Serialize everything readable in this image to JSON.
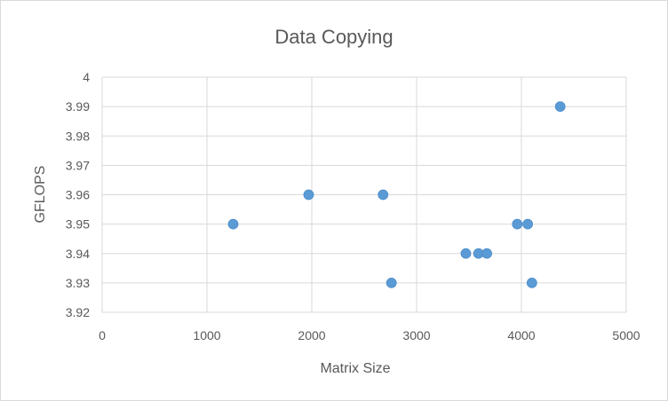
{
  "chart_data": {
    "type": "scatter",
    "title": "Data Copying",
    "xlabel": "Matrix Size",
    "ylabel": "GFLOPS",
    "xlim": [
      0,
      5000
    ],
    "ylim": [
      3.92,
      4.0
    ],
    "x_ticks": [
      "0",
      "1000",
      "2000",
      "3000",
      "4000",
      "5000"
    ],
    "y_ticks": [
      "3.92",
      "3.93",
      "3.94",
      "3.95",
      "3.96",
      "3.97",
      "3.98",
      "3.99",
      "4"
    ],
    "grid": true,
    "legend": "none",
    "marker_color": "#5b9bd5",
    "points": [
      {
        "x": 1250,
        "y": 3.95
      },
      {
        "x": 1970,
        "y": 3.96
      },
      {
        "x": 2680,
        "y": 3.96
      },
      {
        "x": 2760,
        "y": 3.93
      },
      {
        "x": 3470,
        "y": 3.94
      },
      {
        "x": 3590,
        "y": 3.94
      },
      {
        "x": 3670,
        "y": 3.94
      },
      {
        "x": 3960,
        "y": 3.95
      },
      {
        "x": 4060,
        "y": 3.95
      },
      {
        "x": 4100,
        "y": 3.93
      },
      {
        "x": 4370,
        "y": 3.99
      }
    ]
  }
}
